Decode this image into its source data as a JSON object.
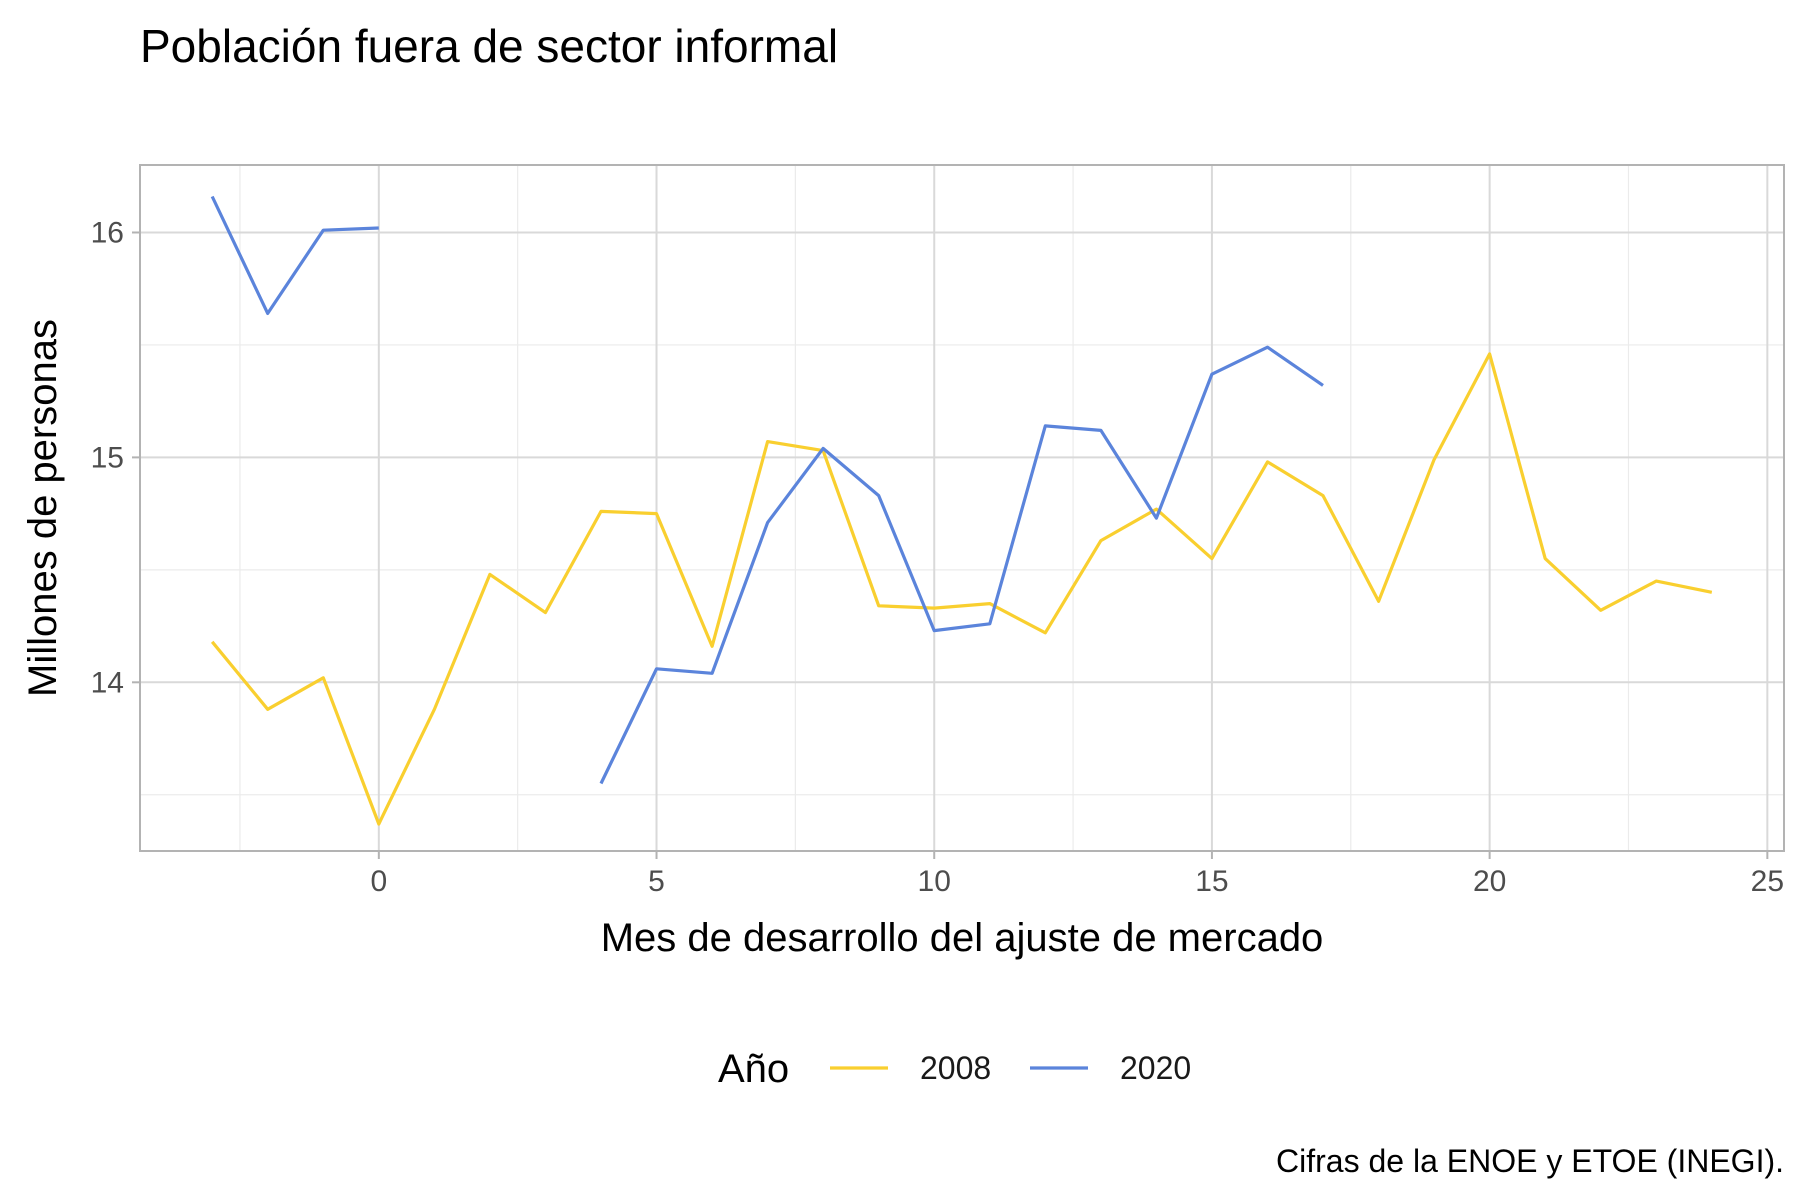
{
  "chart_data": {
    "type": "line",
    "title": "Población fuera de sector informal",
    "xlabel": "Mes de desarrollo del ajuste de mercado",
    "ylabel": "Millones de personas",
    "caption": "Cifras de la ENOE y ETOE (INEGI).",
    "xlim": [
      -4.3,
      25.3
    ],
    "ylim": [
      13.25,
      16.3
    ],
    "x_ticks": [
      0,
      5,
      10,
      15,
      20,
      25
    ],
    "x_tick_labels": [
      "0",
      "5",
      "10",
      "15",
      "20",
      "25"
    ],
    "x_minor_ticks": [
      -2.5,
      2.5,
      7.5,
      12.5,
      17.5,
      22.5
    ],
    "y_ticks": [
      14,
      15,
      16
    ],
    "y_tick_labels": [
      "14",
      "15",
      "16"
    ],
    "y_minor_ticks": [
      13.5,
      14.5,
      15.5
    ],
    "grid": true,
    "legend": {
      "title": "Año",
      "position": "bottom"
    },
    "series": [
      {
        "name": "2008",
        "color": "#F9CF2F",
        "segments": [
          {
            "x": [
              -3,
              -2,
              -1,
              0,
              1,
              2,
              3,
              4,
              5,
              6,
              7,
              8,
              9,
              10,
              11,
              12,
              13,
              14,
              15,
              16,
              17,
              18,
              19,
              20,
              21,
              22,
              23,
              24
            ],
            "y": [
              14.18,
              13.88,
              14.02,
              13.37,
              13.88,
              14.48,
              14.31,
              14.76,
              14.75,
              14.16,
              15.07,
              15.03,
              14.34,
              14.33,
              14.35,
              14.22,
              14.63,
              14.77,
              14.55,
              14.98,
              14.83,
              14.36,
              14.99,
              15.46,
              14.55,
              14.32,
              14.45,
              14.4
            ]
          }
        ]
      },
      {
        "name": "2020",
        "color": "#5B84DB",
        "segments": [
          {
            "x": [
              -3,
              -2,
              -1,
              0
            ],
            "y": [
              16.16,
              15.64,
              16.01,
              16.02
            ]
          },
          {
            "x": [
              4,
              5,
              6,
              7,
              8,
              9,
              10,
              11,
              12,
              13,
              14,
              15,
              16,
              17
            ],
            "y": [
              13.55,
              14.06,
              14.04,
              14.71,
              15.04,
              14.83,
              14.23,
              14.26,
              15.14,
              15.12,
              14.73,
              15.37,
              15.49,
              15.32
            ]
          }
        ]
      }
    ]
  }
}
